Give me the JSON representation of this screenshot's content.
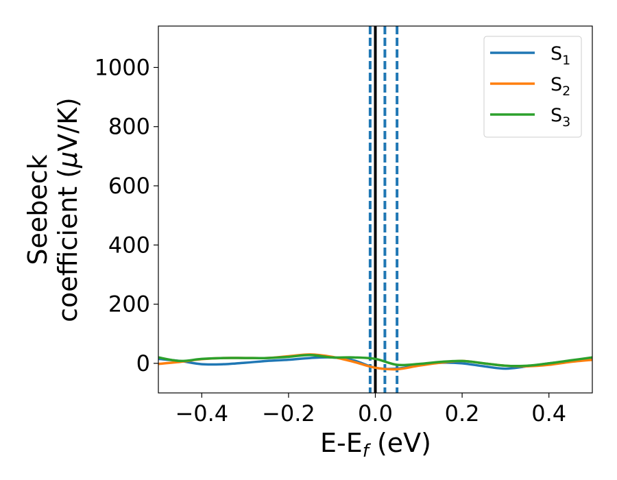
{
  "chart_data": {
    "type": "line",
    "title": "",
    "xlabel": {
      "main": "E-E",
      "sub": "f",
      "tail": " (eV)"
    },
    "ylabel": {
      "line1": "Seebeck",
      "line2": "coefficient  (",
      "mu": "μ",
      "line2_tail": "V/K)"
    },
    "xlim": [
      -0.5,
      0.5
    ],
    "ylim": [
      -100,
      1140
    ],
    "xticks": [
      -0.4,
      -0.2,
      0.0,
      0.2,
      0.4
    ],
    "xtick_labels": [
      "−0.4",
      "−0.2",
      "0.0",
      "0.2",
      "0.4"
    ],
    "yticks": [
      0,
      200,
      400,
      600,
      800,
      1000
    ],
    "ytick_labels": [
      "0",
      "200",
      "400",
      "600",
      "800",
      "1000"
    ],
    "grid": false,
    "legend_position": "top-right",
    "vlines": [
      {
        "x": 0.0,
        "style": "solid",
        "color": "#000000"
      },
      {
        "x": -0.012,
        "style": "dashed",
        "color": "#1f77b4"
      },
      {
        "x": 0.022,
        "style": "dashed",
        "color": "#1f77b4"
      },
      {
        "x": 0.05,
        "style": "dashed",
        "color": "#1f77b4"
      }
    ],
    "series": [
      {
        "name": "S",
        "sub": "1",
        "color": "#1f77b4",
        "x": [
          -0.5,
          -0.45,
          -0.4,
          -0.35,
          -0.3,
          -0.25,
          -0.2,
          -0.15,
          -0.1,
          -0.05,
          0.0,
          0.05,
          0.1,
          0.15,
          0.2,
          0.25,
          0.3,
          0.35,
          0.4,
          0.45,
          0.5
        ],
        "y": [
          15,
          8,
          -3,
          -3,
          2,
          8,
          12,
          18,
          20,
          10,
          -15,
          -18,
          -5,
          2,
          0,
          -10,
          -18,
          -10,
          0,
          8,
          15
        ]
      },
      {
        "name": "S",
        "sub": "2",
        "color": "#ff7f0e",
        "x": [
          -0.5,
          -0.45,
          -0.4,
          -0.35,
          -0.3,
          -0.25,
          -0.2,
          -0.15,
          -0.1,
          -0.05,
          0.0,
          0.05,
          0.1,
          0.15,
          0.2,
          0.25,
          0.3,
          0.35,
          0.4,
          0.45,
          0.5
        ],
        "y": [
          -2,
          5,
          14,
          18,
          18,
          18,
          24,
          30,
          22,
          5,
          -15,
          -20,
          -8,
          2,
          8,
          0,
          -8,
          -10,
          -5,
          5,
          12
        ]
      },
      {
        "name": "S",
        "sub": "3",
        "color": "#2ca02c",
        "x": [
          -0.5,
          -0.45,
          -0.4,
          -0.35,
          -0.3,
          -0.25,
          -0.2,
          -0.15,
          -0.1,
          -0.05,
          0.0,
          0.05,
          0.1,
          0.15,
          0.2,
          0.25,
          0.3,
          0.35,
          0.4,
          0.45,
          0.5
        ],
        "y": [
          20,
          8,
          15,
          18,
          18,
          18,
          22,
          28,
          20,
          20,
          15,
          -5,
          -2,
          5,
          8,
          0,
          -8,
          -8,
          0,
          10,
          20
        ]
      }
    ]
  }
}
